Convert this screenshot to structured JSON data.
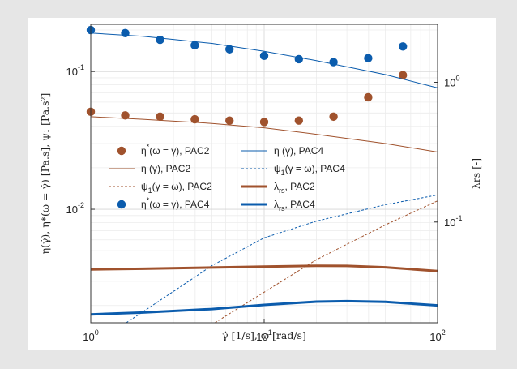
{
  "chart_data": {
    "type": "scatter",
    "x_scale": "log",
    "y_scale": "log",
    "y2_scale": "log",
    "xlim": [
      1,
      100
    ],
    "ylim": [
      0.0015,
      0.22
    ],
    "y2lim": [
      0.019,
      2.6
    ],
    "grid": true,
    "legend_position": "center-left",
    "xlabel": "γ̇ [1/s], ω [rad/s]",
    "ylabel": "η(γ̇), η*(ω = γ̇) [Pa.s], ψ₁ [Pa.s²]",
    "y2label": "λrs [-]",
    "x_ticks": [
      {
        "label": "10",
        "exp": "0",
        "value": 1
      },
      {
        "label": "10",
        "exp": "1",
        "value": 10
      },
      {
        "label": "10",
        "exp": "2",
        "value": 100
      }
    ],
    "y_ticks": [
      {
        "label": "10",
        "exp": "-2",
        "value": 0.01
      },
      {
        "label": "10",
        "exp": "-1",
        "value": 0.1
      }
    ],
    "y2_ticks": [
      {
        "label": "10",
        "exp": "-1",
        "value": 0.1
      },
      {
        "label": "10",
        "exp": "0",
        "value": 1
      }
    ],
    "colors": {
      "pac2": "#a0522d",
      "pac4": "#0b5cad"
    },
    "series": [
      {
        "name": "η*(ω = γ), PAC2",
        "style": "marker",
        "color": "pac2",
        "axis": "left",
        "x": [
          1,
          1.58,
          2.51,
          3.98,
          6.31,
          10,
          15.85,
          25.12,
          39.81,
          63.1
        ],
        "y": [
          0.051,
          0.048,
          0.047,
          0.045,
          0.044,
          0.043,
          0.044,
          0.047,
          0.065,
          0.094
        ]
      },
      {
        "name": "η (γ), PAC2",
        "style": "line",
        "width": 1,
        "dash": "",
        "color": "pac2",
        "axis": "left",
        "x": [
          1,
          2,
          5,
          10,
          20,
          50,
          100
        ],
        "y": [
          0.047,
          0.045,
          0.042,
          0.039,
          0.035,
          0.03,
          0.026
        ]
      },
      {
        "name": "ψ1(γ = ω), PAC2",
        "style": "line",
        "width": 1,
        "dash": "3,2",
        "color": "pac2",
        "axis": "left",
        "x": [
          5.2,
          10,
          20,
          50,
          100
        ],
        "y": [
          0.0015,
          0.0025,
          0.0043,
          0.0077,
          0.0115
        ]
      },
      {
        "name": "η*(ω = γ), PAC4",
        "style": "marker",
        "color": "pac4",
        "axis": "left",
        "x": [
          1,
          1.58,
          2.51,
          3.98,
          6.31,
          10,
          15.85,
          25.12,
          39.81,
          63.1
        ],
        "y": [
          0.2,
          0.19,
          0.17,
          0.155,
          0.145,
          0.13,
          0.123,
          0.117,
          0.125,
          0.152
        ]
      },
      {
        "name": "η (γ), PAC4",
        "style": "line",
        "width": 1,
        "dash": "",
        "color": "pac4",
        "axis": "left",
        "x": [
          1,
          2,
          5,
          10,
          20,
          50,
          100
        ],
        "y": [
          0.19,
          0.18,
          0.16,
          0.14,
          0.12,
          0.095,
          0.076
        ]
      },
      {
        "name": "ψ1(γ = ω), PAC4",
        "style": "line",
        "width": 1,
        "dash": "3,2",
        "color": "pac4",
        "axis": "left",
        "x": [
          1.6,
          2,
          5,
          10,
          20,
          50,
          100
        ],
        "y": [
          0.0015,
          0.0018,
          0.0039,
          0.0062,
          0.0082,
          0.0108,
          0.0127
        ]
      },
      {
        "name": "λrs, PAC2",
        "style": "line",
        "width": 3,
        "dash": "",
        "color": "pac2",
        "axis": "right",
        "x": [
          1,
          2,
          5,
          10,
          20,
          30,
          50,
          100
        ],
        "y": [
          0.0458,
          0.0463,
          0.0472,
          0.048,
          0.0486,
          0.0485,
          0.0474,
          0.0445
        ]
      },
      {
        "name": "λrs, PAC4",
        "style": "line",
        "width": 3,
        "dash": "",
        "color": "pac4",
        "axis": "right",
        "x": [
          1,
          2,
          5,
          10,
          20,
          30,
          50,
          100
        ],
        "y": [
          0.0218,
          0.0225,
          0.0238,
          0.0255,
          0.0269,
          0.0271,
          0.0268,
          0.0253
        ]
      }
    ],
    "legend": [
      {
        "text": "η",
        "sup": "*",
        "rest": "(ω = γ), PAC2",
        "series": 0,
        "col": 0,
        "row": 0
      },
      {
        "text": "η (γ), PAC2",
        "series": 1,
        "col": 0,
        "row": 1
      },
      {
        "text": "ψ",
        "sub": "1",
        "rest": "(γ = ω), PAC2",
        "series": 2,
        "col": 0,
        "row": 2
      },
      {
        "text": "η",
        "sup": "*",
        "rest": "(ω = γ), PAC4",
        "series": 3,
        "col": 0,
        "row": 3
      },
      {
        "text": "η (γ), PAC4",
        "series": 4,
        "col": 1,
        "row": 0
      },
      {
        "text": "ψ",
        "sub": "1",
        "rest": "(γ = ω), PAC4",
        "series": 5,
        "col": 1,
        "row": 1
      },
      {
        "text": "λ",
        "sub": "rs",
        "rest": ", PAC2",
        "series": 6,
        "col": 1,
        "row": 2
      },
      {
        "text": "λ",
        "sub": "rs",
        "rest": ", PAC4",
        "series": 7,
        "col": 1,
        "row": 3
      }
    ]
  }
}
